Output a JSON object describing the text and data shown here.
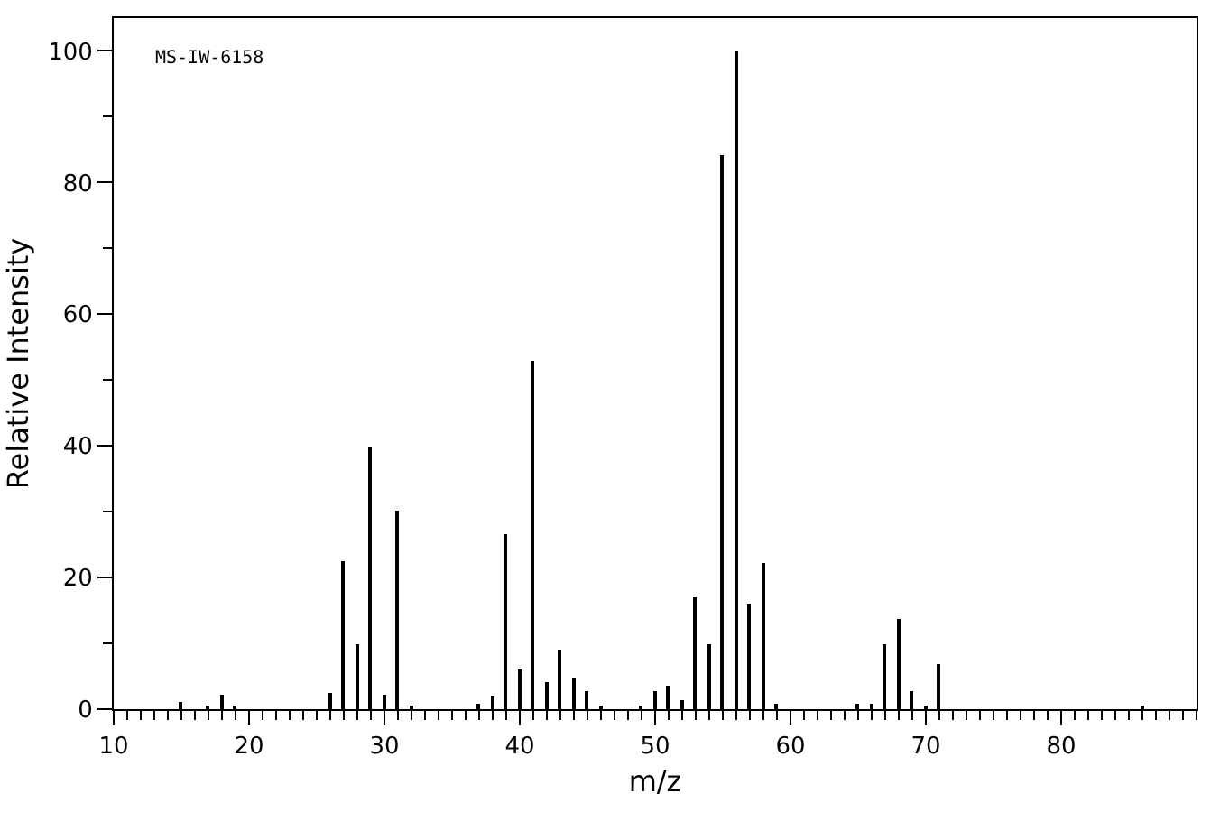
{
  "chart_data": {
    "type": "bar",
    "xlabel": "m/z",
    "ylabel": "Relative Intensity",
    "annotations": [
      "MS-IW-6158"
    ],
    "x": [
      15,
      17,
      18,
      19,
      26,
      27,
      28,
      29,
      30,
      31,
      32,
      37,
      38,
      39,
      40,
      41,
      42,
      43,
      44,
      45,
      46,
      49,
      50,
      51,
      52,
      53,
      54,
      55,
      56,
      57,
      58,
      59,
      65,
      66,
      67,
      68,
      69,
      70,
      71,
      86
    ],
    "values": [
      1.2,
      0.6,
      2.2,
      0.3,
      2.5,
      22.5,
      10,
      39.8,
      2.3,
      30.2,
      0.5,
      0.9,
      2,
      26.5,
      5.9,
      52.9,
      4.2,
      9.1,
      4.7,
      2.8,
      0.3,
      0.6,
      2.8,
      3.6,
      1.5,
      17,
      9.9,
      84.2,
      100,
      15.9,
      22.2,
      0.9,
      0.8,
      0.7,
      9.9,
      13.6,
      2.8,
      0.4,
      6.9,
      0.3
    ],
    "color": "#000000",
    "xlim": [
      10,
      90
    ],
    "xticks": [
      10,
      20,
      30,
      40,
      50,
      60,
      70,
      80
    ],
    "ylim": [
      0,
      105
    ],
    "yticks": [
      0,
      20,
      40,
      60,
      80,
      100
    ],
    "grid": false
  }
}
